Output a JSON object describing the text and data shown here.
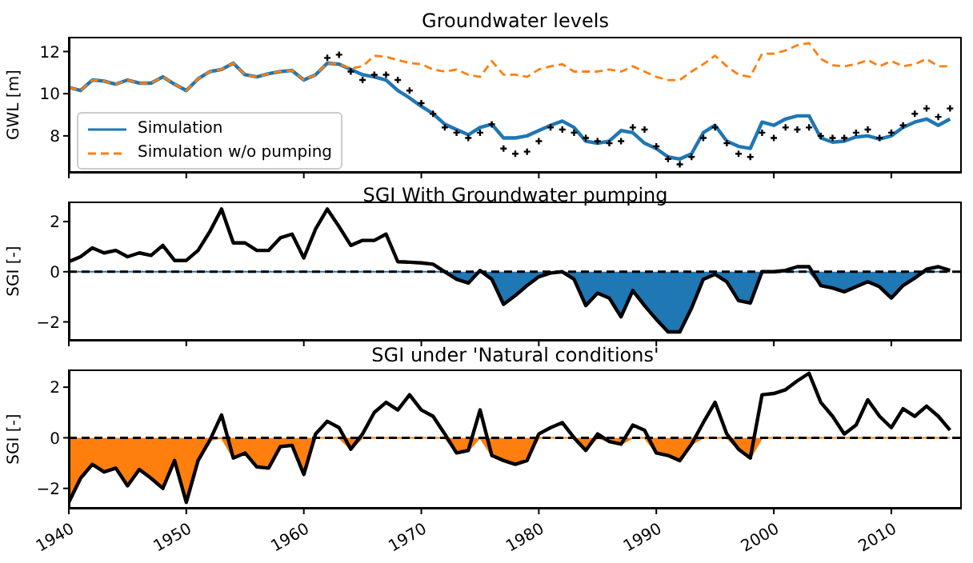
{
  "chart_data": [
    {
      "type": "line",
      "title": "Groundwater levels",
      "ylabel": "GWL [m]",
      "xlim": [
        1940,
        2016
      ],
      "xticks": [
        1940,
        1950,
        1960,
        1970,
        1980,
        1990,
        2000,
        2010
      ],
      "ylim": [
        6.25,
        12.7
      ],
      "yticks": [
        8,
        10,
        12
      ],
      "tick_labels": "y",
      "legend": "bottom left",
      "x": [
        1940,
        1941,
        1942,
        1943,
        1944,
        1945,
        1946,
        1947,
        1948,
        1949,
        1950,
        1951,
        1952,
        1953,
        1954,
        1955,
        1956,
        1957,
        1958,
        1959,
        1960,
        1961,
        1962,
        1963,
        1964,
        1965,
        1966,
        1967,
        1968,
        1969,
        1970,
        1971,
        1972,
        1973,
        1974,
        1975,
        1976,
        1977,
        1978,
        1979,
        1980,
        1981,
        1982,
        1983,
        1984,
        1985,
        1986,
        1987,
        1988,
        1989,
        1990,
        1991,
        1992,
        1993,
        1994,
        1995,
        1996,
        1997,
        1998,
        1999,
        2000,
        2001,
        2002,
        2003,
        2004,
        2005,
        2006,
        2007,
        2008,
        2009,
        2010,
        2011,
        2012,
        2013,
        2014,
        2015
      ],
      "series": [
        {
          "name": "Simulation",
          "color": "#1f77b4",
          "values": [
            10.3,
            10.15,
            10.65,
            10.6,
            10.45,
            10.65,
            10.5,
            10.5,
            10.8,
            10.45,
            10.15,
            10.7,
            11.05,
            11.15,
            11.45,
            10.9,
            10.8,
            10.95,
            11.05,
            11.1,
            10.65,
            10.9,
            11.45,
            11.4,
            11.15,
            10.9,
            10.8,
            10.65,
            10.15,
            9.8,
            9.4,
            9.05,
            8.55,
            8.3,
            8.05,
            8.4,
            8.55,
            7.9,
            7.9,
            8.0,
            8.25,
            8.5,
            8.7,
            8.4,
            7.75,
            7.65,
            7.75,
            8.25,
            8.15,
            7.65,
            7.4,
            7.0,
            6.9,
            7.15,
            8.15,
            8.5,
            7.75,
            7.5,
            7.4,
            8.65,
            8.5,
            8.8,
            8.95,
            8.95,
            7.9,
            7.7,
            7.75,
            7.95,
            8.0,
            7.85,
            8.0,
            8.4,
            8.65,
            8.8,
            8.5,
            8.8
          ]
        },
        {
          "name": "Simulation w/o pumping",
          "line_style": "dashed",
          "color": "#ff7f0e",
          "values": [
            10.3,
            10.15,
            10.65,
            10.6,
            10.45,
            10.65,
            10.5,
            10.5,
            10.8,
            10.45,
            10.15,
            10.7,
            11.05,
            11.15,
            11.45,
            10.9,
            10.8,
            10.95,
            11.05,
            11.1,
            10.65,
            10.9,
            11.45,
            11.4,
            11.2,
            11.3,
            11.8,
            11.75,
            11.6,
            11.45,
            11.4,
            11.15,
            11.05,
            11.15,
            10.9,
            10.8,
            11.55,
            10.9,
            10.9,
            10.8,
            11.15,
            11.3,
            11.4,
            11.05,
            11.05,
            11.05,
            11.15,
            11.05,
            11.3,
            11.05,
            10.8,
            10.65,
            10.65,
            11.05,
            11.4,
            11.8,
            11.3,
            10.9,
            10.8,
            11.9,
            11.9,
            12.05,
            12.3,
            12.4,
            11.65,
            11.35,
            11.3,
            11.4,
            11.6,
            11.3,
            11.55,
            11.3,
            11.4,
            11.65,
            11.3,
            11.3
          ]
        },
        {
          "type": "scatter",
          "marker": "cross",
          "color": "#000000",
          "values": [
            null,
            null,
            null,
            null,
            null,
            null,
            null,
            null,
            null,
            null,
            null,
            null,
            null,
            null,
            null,
            null,
            null,
            null,
            null,
            null,
            null,
            null,
            11.7,
            11.85,
            11.05,
            10.65,
            10.9,
            10.9,
            10.65,
            10.15,
            9.55,
            9.05,
            8.4,
            8.15,
            7.9,
            8.15,
            8.55,
            7.4,
            7.15,
            7.25,
            7.75,
            8.4,
            8.3,
            8.15,
            7.9,
            7.75,
            7.65,
            7.75,
            8.4,
            8.3,
            7.5,
            6.9,
            6.65,
            7.0,
            7.9,
            8.4,
            7.65,
            7.15,
            7.0,
            8.15,
            7.9,
            8.4,
            8.3,
            8.4,
            8.0,
            7.9,
            7.9,
            8.15,
            8.3,
            7.9,
            8.15,
            8.5,
            9.05,
            9.3,
            8.9,
            9.3
          ]
        }
      ]
    },
    {
      "type": "line",
      "title": "SGI With Groundwater pumping",
      "ylabel": "SGI [-]",
      "xlim": [
        1940,
        2016
      ],
      "xticks": [
        1940,
        1950,
        1960,
        1970,
        1980,
        1990,
        2000,
        2010
      ],
      "ylim": [
        -2.75,
        2.8
      ],
      "yticks": [
        {
          "value": -2,
          "label": "−2"
        },
        0,
        2
      ],
      "tick_labels": "y",
      "ref_lines": [
        {
          "axis": "y",
          "value": 0,
          "color": "#000000",
          "line_style": "dashed"
        }
      ],
      "x": [
        1940,
        1941,
        1942,
        1943,
        1944,
        1945,
        1946,
        1947,
        1948,
        1949,
        1950,
        1951,
        1952,
        1953,
        1954,
        1955,
        1956,
        1957,
        1958,
        1959,
        1960,
        1961,
        1962,
        1963,
        1964,
        1965,
        1966,
        1967,
        1968,
        1969,
        1970,
        1971,
        1972,
        1973,
        1974,
        1975,
        1976,
        1977,
        1978,
        1979,
        1980,
        1981,
        1982,
        1983,
        1984,
        1985,
        1986,
        1987,
        1988,
        1989,
        1990,
        1991,
        1992,
        1993,
        1994,
        1995,
        1996,
        1997,
        1998,
        1999,
        2000,
        2001,
        2002,
        2003,
        2004,
        2005,
        2006,
        2007,
        2008,
        2009,
        2010,
        2011,
        2012,
        2013,
        2014,
        2015
      ],
      "series": [
        {
          "type": "area",
          "color": "#1f77b4",
          "values": [
            0,
            0,
            0,
            0,
            0,
            0,
            0,
            0,
            0,
            0,
            0,
            0,
            0,
            0,
            0,
            0,
            0,
            0,
            0,
            0,
            0,
            0,
            0,
            0,
            0,
            0,
            0,
            0,
            0,
            0,
            0,
            0,
            0,
            -0.3,
            -0.45,
            0,
            -0.3,
            -1.3,
            -0.95,
            -0.55,
            -0.2,
            -0.05,
            0,
            -0.3,
            -1.35,
            -0.85,
            -1.05,
            -1.8,
            -0.75,
            -1.35,
            -1.9,
            -2.4,
            -2.4,
            -1.45,
            -0.3,
            -0.1,
            -0.4,
            -1.15,
            -1.25,
            0,
            0,
            0,
            0,
            0,
            -0.55,
            -0.65,
            -0.8,
            -0.6,
            -0.4,
            -0.6,
            -1.05,
            -0.55,
            -0.25,
            0,
            0,
            0
          ]
        },
        {
          "color": "#000000",
          "values": [
            0.4,
            0.6,
            0.95,
            0.75,
            0.85,
            0.6,
            0.75,
            0.65,
            1.05,
            0.45,
            0.45,
            0.85,
            1.6,
            2.5,
            1.15,
            1.15,
            0.85,
            0.85,
            1.35,
            1.5,
            0.55,
            1.7,
            2.5,
            1.8,
            1.05,
            1.25,
            1.25,
            1.5,
            0.4,
            0.38,
            0.35,
            0.3,
            0,
            -0.3,
            -0.45,
            0.05,
            -0.3,
            -1.3,
            -0.95,
            -0.55,
            -0.2,
            -0.05,
            0,
            -0.3,
            -1.35,
            -0.85,
            -1.05,
            -1.8,
            -0.75,
            -1.35,
            -1.9,
            -2.4,
            -2.4,
            -1.45,
            -0.3,
            -0.1,
            -0.4,
            -1.15,
            -1.25,
            0,
            0,
            0.05,
            0.2,
            0.2,
            -0.55,
            -0.65,
            -0.8,
            -0.6,
            -0.4,
            -0.6,
            -1.05,
            -0.55,
            -0.25,
            0.1,
            0.2,
            0.05
          ]
        }
      ]
    },
    {
      "type": "line",
      "title": "SGI under 'Natural conditions'",
      "ylabel": "SGI [-]",
      "xlim": [
        1940,
        2016
      ],
      "xticks": [
        1940,
        1950,
        1960,
        1970,
        1980,
        1990,
        2000,
        2010
      ],
      "ylim": [
        -2.8,
        2.7
      ],
      "yticks": [
        {
          "value": -2,
          "label": "−2"
        },
        0,
        2
      ],
      "ref_lines": [
        {
          "axis": "y",
          "value": 0,
          "color": "#000000",
          "line_style": "dashed"
        }
      ],
      "x": [
        1940,
        1941,
        1942,
        1943,
        1944,
        1945,
        1946,
        1947,
        1948,
        1949,
        1950,
        1951,
        1952,
        1953,
        1954,
        1955,
        1956,
        1957,
        1958,
        1959,
        1960,
        1961,
        1962,
        1963,
        1964,
        1965,
        1966,
        1967,
        1968,
        1969,
        1970,
        1971,
        1972,
        1973,
        1974,
        1975,
        1976,
        1977,
        1978,
        1979,
        1980,
        1981,
        1982,
        1983,
        1984,
        1985,
        1986,
        1987,
        1988,
        1989,
        1990,
        1991,
        1992,
        1993,
        1994,
        1995,
        1996,
        1997,
        1998,
        1999,
        2000,
        2001,
        2002,
        2003,
        2004,
        2005,
        2006,
        2007,
        2008,
        2009,
        2010,
        2011,
        2012,
        2013,
        2014,
        2015
      ],
      "series": [
        {
          "type": "area",
          "color": "#ff7f0e",
          "values": [
            -2.55,
            -1.6,
            -1.05,
            -1.35,
            -1.2,
            -1.9,
            -1.25,
            -1.6,
            -2.0,
            -0.9,
            -2.55,
            -0.9,
            -0.1,
            0,
            -0.8,
            -0.6,
            -1.15,
            -1.2,
            -0.35,
            -0.3,
            -1.45,
            0,
            0,
            0,
            -0.45,
            0,
            0,
            0,
            0,
            0,
            0,
            0,
            0,
            -0.6,
            -0.5,
            0,
            -0.7,
            -0.9,
            -1.05,
            -0.9,
            0,
            0,
            0,
            0,
            -0.5,
            0,
            -0.15,
            -0.25,
            0,
            0,
            -0.6,
            -0.7,
            -0.9,
            -0.25,
            0,
            0,
            0,
            -0.45,
            -0.8,
            0,
            0,
            0,
            0,
            0,
            0,
            0,
            0,
            0,
            0,
            0,
            0,
            0,
            0,
            0,
            0,
            0
          ]
        },
        {
          "color": "#000000",
          "values": [
            -2.55,
            -1.6,
            -1.05,
            -1.35,
            -1.2,
            -1.9,
            -1.25,
            -1.6,
            -2.0,
            -0.9,
            -2.55,
            -0.9,
            -0.1,
            0.9,
            -0.8,
            -0.6,
            -1.15,
            -1.2,
            -0.35,
            -0.3,
            -1.45,
            0.15,
            0.65,
            0.4,
            -0.45,
            0.15,
            1.0,
            1.4,
            1.1,
            1.7,
            1.1,
            0.85,
            0.15,
            -0.6,
            -0.5,
            1.1,
            -0.7,
            -0.9,
            -1.05,
            -0.9,
            0.15,
            0.4,
            0.6,
            0,
            -0.5,
            0.15,
            -0.15,
            -0.25,
            0.5,
            0.3,
            -0.6,
            -0.7,
            -0.9,
            -0.25,
            0.6,
            1.4,
            0.15,
            -0.45,
            -0.8,
            1.7,
            1.75,
            1.9,
            2.25,
            2.55,
            1.4,
            0.85,
            0.15,
            0.5,
            1.5,
            0.85,
            0.4,
            1.15,
            0.85,
            1.25,
            0.85,
            0.3
          ]
        }
      ]
    }
  ]
}
